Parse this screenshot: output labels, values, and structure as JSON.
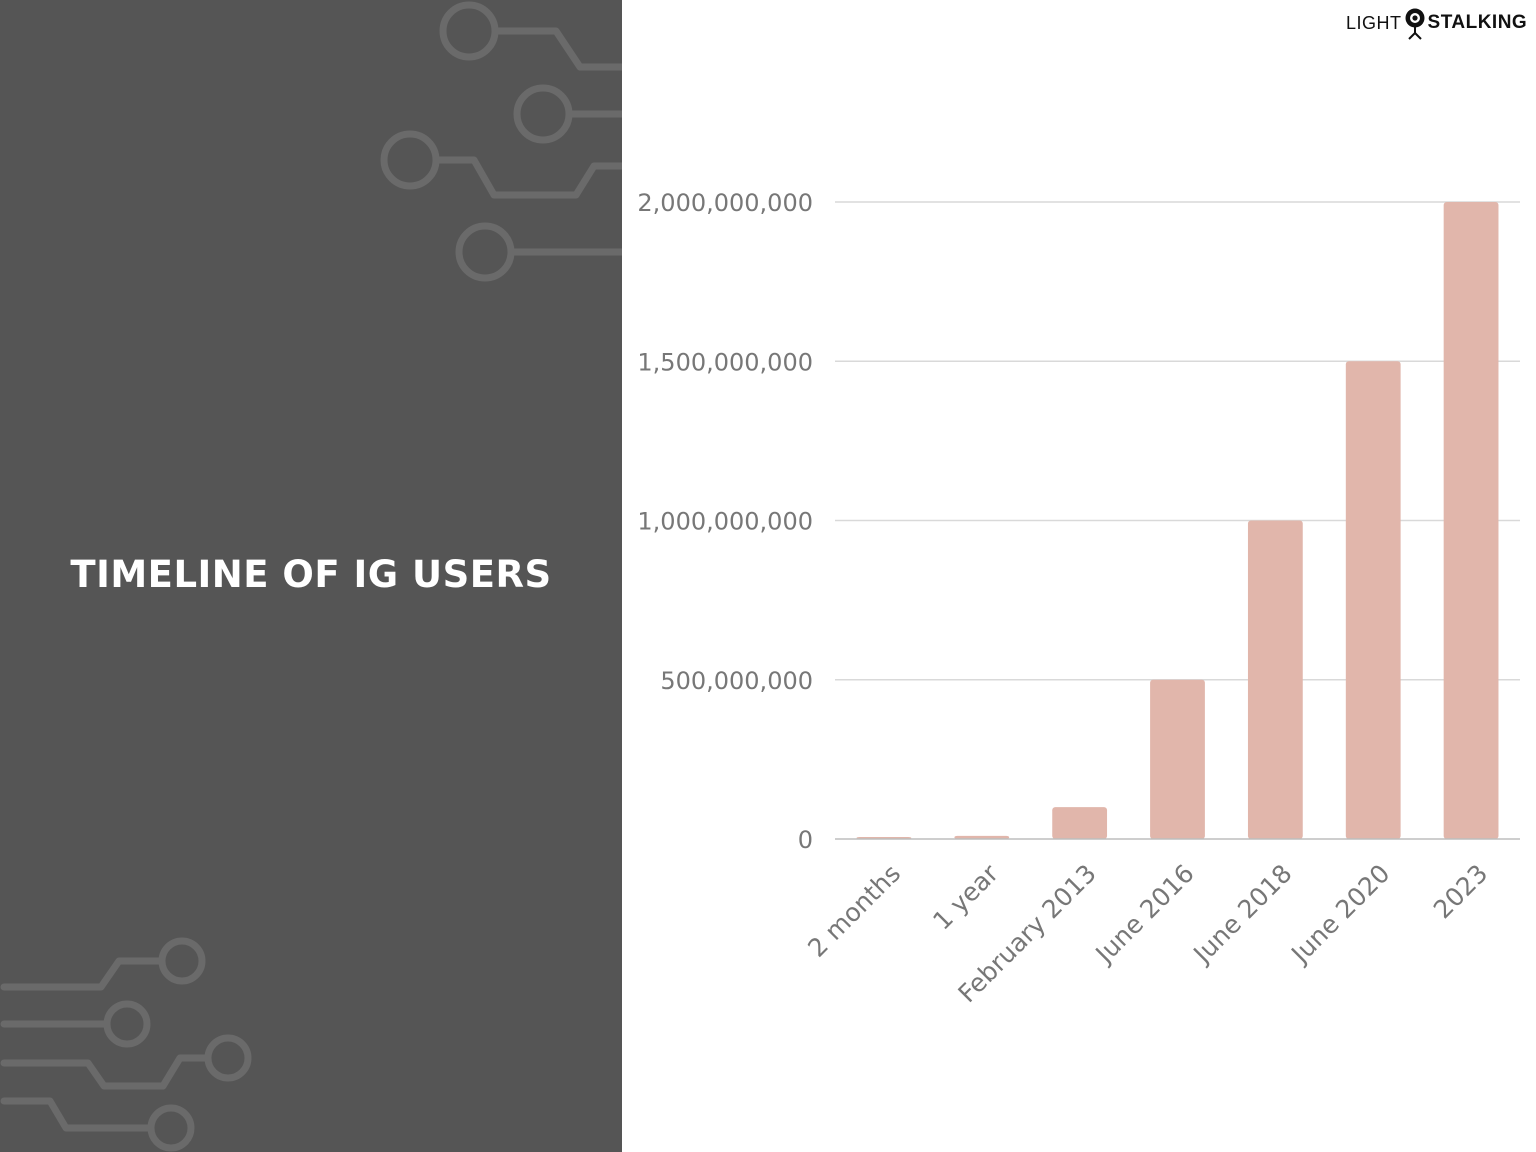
{
  "title": "TIMELINE OF IG USERS",
  "logo": {
    "left_text": "LIGHT",
    "right_text": "STALKING",
    "icon": "camera-icon"
  },
  "colors": {
    "left_panel": "#555555",
    "circuit_lines": "#6a6a6a",
    "bar": "#e1b6ab",
    "gridline": "#d9d9d9",
    "tick_text": "#777777"
  },
  "chart_data": {
    "type": "bar",
    "categories": [
      "2 months",
      "1 year",
      "February 2013",
      "June 2016",
      "June 2018",
      "June 2020",
      "2023"
    ],
    "values": [
      1000000,
      10000000,
      100000000,
      500000000,
      1000000000,
      1500000000,
      2000000000
    ],
    "title": "",
    "xlabel": "",
    "ylabel": "",
    "ylim": [
      0,
      2000000000
    ],
    "yticks": [
      0,
      500000000,
      1000000000,
      1500000000,
      2000000000
    ],
    "ytick_labels": [
      "0",
      "500,000,000",
      "1,000,000,000",
      "1,500,000,000",
      "2,000,000,000"
    ],
    "grid": true,
    "legend": "none"
  }
}
